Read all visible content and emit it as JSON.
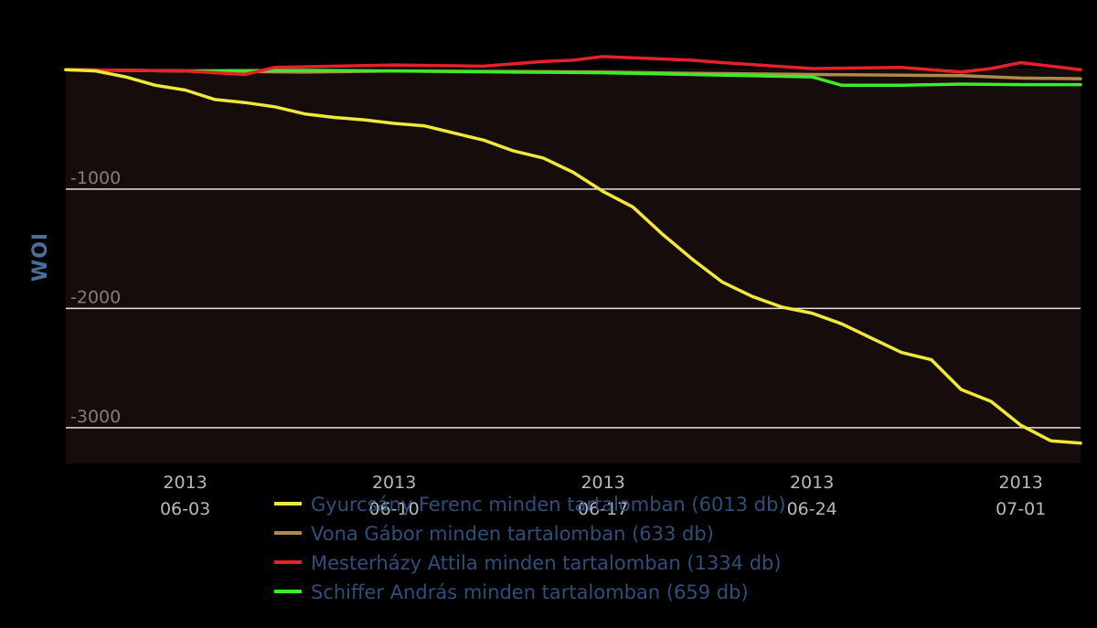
{
  "chart_data": {
    "type": "line",
    "ylabel": "WOI",
    "xlabel": "",
    "ylim": [
      -3300,
      10
    ],
    "xlim": [
      "2013-05-30",
      "2013-07-03"
    ],
    "grid": true,
    "legend_position": "bottom",
    "background": "#160c0c",
    "y_ticks": [
      {
        "value": -1000,
        "label": "-1000"
      },
      {
        "value": -2000,
        "label": "-2000"
      },
      {
        "value": -3000,
        "label": "-3000"
      }
    ],
    "x_ticks": [
      {
        "date": "2013-06-03",
        "year": "2013",
        "label": "06-03"
      },
      {
        "date": "2013-06-10",
        "year": "2013",
        "label": "06-10"
      },
      {
        "date": "2013-06-17",
        "year": "2013",
        "label": "06-17"
      },
      {
        "date": "2013-06-24",
        "year": "2013",
        "label": "06-24"
      },
      {
        "date": "2013-07-01",
        "year": "2013",
        "label": "07-01"
      }
    ],
    "series": [
      {
        "name": "Gyurcsány Ferenc minden tartalomban (6013 db)",
        "color": "#f2e83a",
        "points": [
          [
            "2013-05-30",
            0
          ],
          [
            "2013-05-31",
            -10
          ],
          [
            "2013-06-01",
            -60
          ],
          [
            "2013-06-02",
            -130
          ],
          [
            "2013-06-03",
            -170
          ],
          [
            "2013-06-04",
            -250
          ],
          [
            "2013-06-05",
            -275
          ],
          [
            "2013-06-06",
            -310
          ],
          [
            "2013-06-07",
            -370
          ],
          [
            "2013-06-08",
            -400
          ],
          [
            "2013-06-09",
            -420
          ],
          [
            "2013-06-10",
            -450
          ],
          [
            "2013-06-11",
            -470
          ],
          [
            "2013-06-12",
            -530
          ],
          [
            "2013-06-13",
            -590
          ],
          [
            "2013-06-14",
            -680
          ],
          [
            "2013-06-15",
            -740
          ],
          [
            "2013-06-16",
            -860
          ],
          [
            "2013-06-17",
            -1020
          ],
          [
            "2013-06-18",
            -1150
          ],
          [
            "2013-06-19",
            -1380
          ],
          [
            "2013-06-20",
            -1590
          ],
          [
            "2013-06-21",
            -1780
          ],
          [
            "2013-06-22",
            -1900
          ],
          [
            "2013-06-23",
            -1990
          ],
          [
            "2013-06-24",
            -2040
          ],
          [
            "2013-06-25",
            -2130
          ],
          [
            "2013-06-26",
            -2250
          ],
          [
            "2013-06-27",
            -2370
          ],
          [
            "2013-06-28",
            -2430
          ],
          [
            "2013-06-29",
            -2680
          ],
          [
            "2013-06-30",
            -2780
          ],
          [
            "2013-07-01",
            -2980
          ],
          [
            "2013-07-02",
            -3110
          ],
          [
            "2013-07-03",
            -3130
          ]
        ]
      },
      {
        "name": "Vona Gábor minden tartalomban (633 db)",
        "color": "#b08a4a",
        "points": [
          [
            "2013-05-30",
            0
          ],
          [
            "2013-06-03",
            -10
          ],
          [
            "2013-06-07",
            -20
          ],
          [
            "2013-06-10",
            -10
          ],
          [
            "2013-06-14",
            -15
          ],
          [
            "2013-06-17",
            -20
          ],
          [
            "2013-06-20",
            -30
          ],
          [
            "2013-06-24",
            -40
          ],
          [
            "2013-06-27",
            -45
          ],
          [
            "2013-06-29",
            -50
          ],
          [
            "2013-07-01",
            -70
          ],
          [
            "2013-07-03",
            -75
          ]
        ]
      },
      {
        "name": "Mesterházy Attila minden tartalomban (1334 db)",
        "color": "#e8202a",
        "points": [
          [
            "2013-05-30",
            0
          ],
          [
            "2013-06-03",
            -10
          ],
          [
            "2013-06-05",
            -40
          ],
          [
            "2013-06-06",
            20
          ],
          [
            "2013-06-08",
            30
          ],
          [
            "2013-06-10",
            40
          ],
          [
            "2013-06-13",
            30
          ],
          [
            "2013-06-15",
            70
          ],
          [
            "2013-06-16",
            80
          ],
          [
            "2013-06-17",
            110
          ],
          [
            "2013-06-18",
            100
          ],
          [
            "2013-06-20",
            80
          ],
          [
            "2013-06-21",
            60
          ],
          [
            "2013-06-24",
            10
          ],
          [
            "2013-06-27",
            20
          ],
          [
            "2013-06-29",
            -20
          ],
          [
            "2013-06-30",
            10
          ],
          [
            "2013-07-01",
            60
          ],
          [
            "2013-07-02",
            30
          ],
          [
            "2013-07-03",
            0
          ]
        ]
      },
      {
        "name": "Schiffer András minden tartalomban (659 db)",
        "color": "#3cec2a",
        "points": [
          [
            "2013-05-30",
            0
          ],
          [
            "2013-06-03",
            -10
          ],
          [
            "2013-06-07",
            -5
          ],
          [
            "2013-06-10",
            -10
          ],
          [
            "2013-06-14",
            -20
          ],
          [
            "2013-06-17",
            -25
          ],
          [
            "2013-06-20",
            -40
          ],
          [
            "2013-06-24",
            -60
          ],
          [
            "2013-06-25",
            -130
          ],
          [
            "2013-06-27",
            -130
          ],
          [
            "2013-06-29",
            -120
          ],
          [
            "2013-07-01",
            -125
          ],
          [
            "2013-07-03",
            -125
          ]
        ]
      }
    ]
  }
}
